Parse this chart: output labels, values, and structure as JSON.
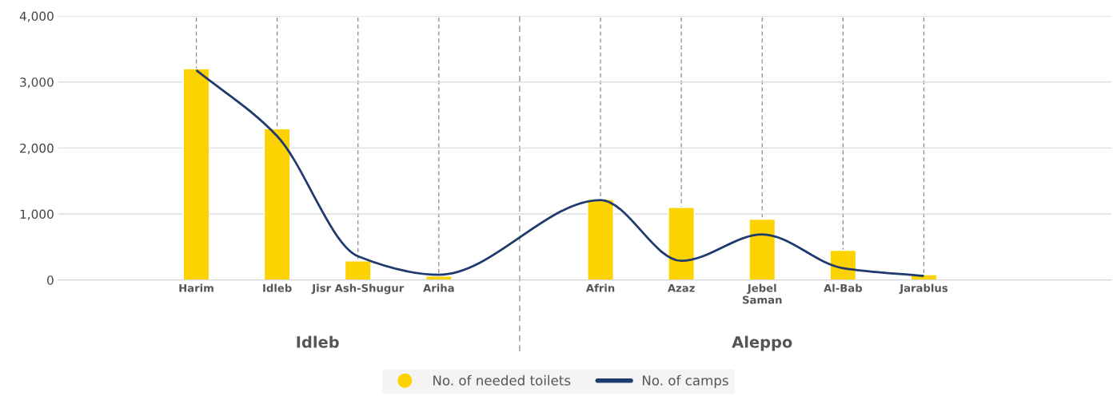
{
  "chart_data": {
    "type": "bar",
    "categories": [
      "Harim",
      "Idleb",
      "Jisr Ash-Shugur",
      "Ariha",
      null,
      "Afrin",
      "Azaz",
      "Jebel\nSaman",
      "Al-Bab",
      "Jarablus"
    ],
    "series": [
      {
        "name": "No. of needed toilets",
        "color": "#fcd200",
        "values": [
          3200,
          2290,
          290,
          60,
          null,
          1220,
          1100,
          920,
          450,
          80
        ]
      },
      {
        "name": "No. of camps",
        "type": "line",
        "color": "#1f3a6e",
        "values": [
          3180,
          2180,
          360,
          80,
          null,
          1210,
          290,
          690,
          180,
          60
        ]
      }
    ],
    "ylim": [
      0,
      4000
    ],
    "yticks": [
      {
        "value": 0,
        "label": "0"
      },
      {
        "value": 1000,
        "label": "1,000"
      },
      {
        "value": 2000,
        "label": "2,000"
      },
      {
        "value": 3000,
        "label": "3,000"
      },
      {
        "value": 4000,
        "label": "4,000"
      }
    ],
    "grid": true,
    "legend": "bottom",
    "marker": "none",
    "line_style": "solid",
    "annotations": [
      "Idleb",
      "Aleppo"
    ]
  }
}
